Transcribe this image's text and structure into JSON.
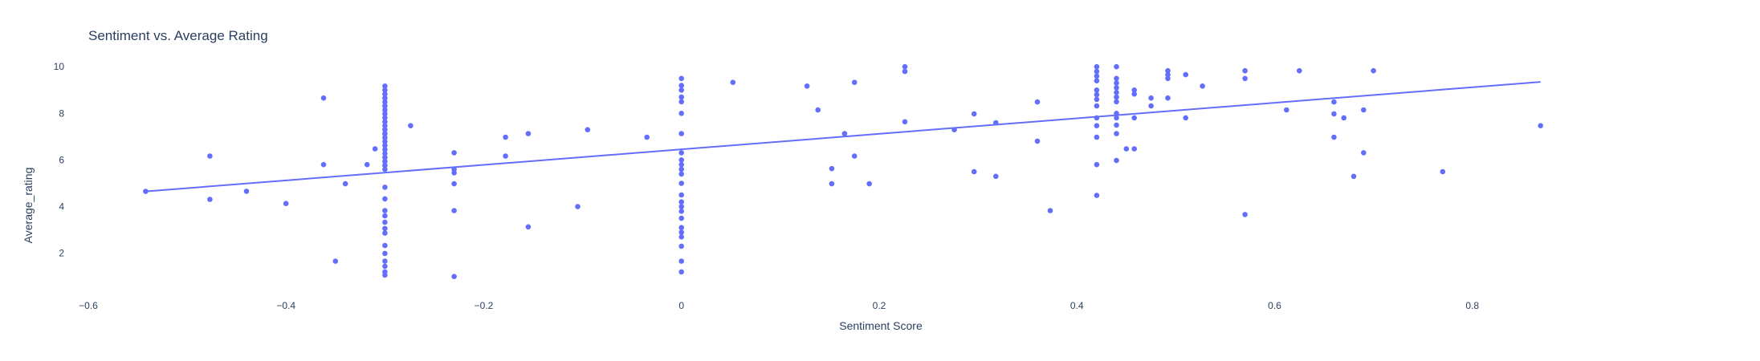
{
  "chart_data": {
    "type": "scatter",
    "title": "Sentiment vs. Average Rating",
    "xlabel": "Sentiment Score",
    "ylabel": "Average_rating",
    "xlim": [
      -0.6,
      1.0
    ],
    "ylim": [
      0.3,
      10.8
    ],
    "xticks": [
      -0.6,
      -0.4,
      -0.2,
      0,
      0.2,
      0.4,
      0.6,
      0.8
    ],
    "xtick_labels": [
      "−0.6",
      "−0.4",
      "−0.2",
      "0",
      "0.2",
      "0.4",
      "0.6",
      "0.8"
    ],
    "yticks": [
      2,
      4,
      6,
      8,
      10
    ],
    "ytick_labels": [
      "2",
      "4",
      "6",
      "8",
      "10"
    ],
    "grid": false,
    "marker_color": "#636efa",
    "trendline": {
      "x": [
        -0.542,
        0.869
      ],
      "y": [
        4.65,
        9.35
      ]
    },
    "points": [
      [
        -0.542,
        4.65
      ],
      [
        -0.477,
        6.17
      ],
      [
        -0.477,
        4.31
      ],
      [
        -0.44,
        4.66
      ],
      [
        -0.4,
        4.13
      ],
      [
        -0.362,
        8.66
      ],
      [
        -0.362,
        5.8
      ],
      [
        -0.35,
        1.66
      ],
      [
        -0.34,
        4.98
      ],
      [
        -0.318,
        5.8
      ],
      [
        -0.31,
        6.48
      ],
      [
        -0.3,
        9.17
      ],
      [
        -0.3,
        9.0
      ],
      [
        -0.3,
        8.83
      ],
      [
        -0.3,
        8.66
      ],
      [
        -0.3,
        8.49
      ],
      [
        -0.3,
        8.32
      ],
      [
        -0.3,
        8.15
      ],
      [
        -0.3,
        7.98
      ],
      [
        -0.3,
        7.81
      ],
      [
        -0.3,
        7.64
      ],
      [
        -0.3,
        7.47
      ],
      [
        -0.3,
        7.3
      ],
      [
        -0.3,
        7.13
      ],
      [
        -0.3,
        6.96
      ],
      [
        -0.3,
        6.79
      ],
      [
        -0.3,
        6.62
      ],
      [
        -0.3,
        6.45
      ],
      [
        -0.3,
        6.28
      ],
      [
        -0.3,
        6.11
      ],
      [
        -0.3,
        5.94
      ],
      [
        -0.3,
        5.77
      ],
      [
        -0.3,
        5.6
      ],
      [
        -0.3,
        4.83
      ],
      [
        -0.3,
        4.33
      ],
      [
        -0.3,
        3.83
      ],
      [
        -0.3,
        3.6
      ],
      [
        -0.3,
        3.33
      ],
      [
        -0.3,
        3.06
      ],
      [
        -0.3,
        2.86
      ],
      [
        -0.3,
        2.33
      ],
      [
        -0.3,
        1.99
      ],
      [
        -0.3,
        1.66
      ],
      [
        -0.3,
        1.44
      ],
      [
        -0.3,
        1.2
      ],
      [
        -0.3,
        1.06
      ],
      [
        -0.274,
        7.47
      ],
      [
        -0.23,
        6.31
      ],
      [
        -0.23,
        5.6
      ],
      [
        -0.23,
        5.45
      ],
      [
        -0.23,
        4.98
      ],
      [
        -0.23,
        3.83
      ],
      [
        -0.23,
        1.0
      ],
      [
        -0.178,
        6.98
      ],
      [
        -0.178,
        6.17
      ],
      [
        -0.155,
        7.13
      ],
      [
        -0.155,
        3.13
      ],
      [
        -0.105,
        4.0
      ],
      [
        -0.095,
        7.3
      ],
      [
        -0.035,
        6.98
      ],
      [
        0,
        9.5
      ],
      [
        0,
        9.2
      ],
      [
        0,
        9.0
      ],
      [
        0,
        8.7
      ],
      [
        0,
        8.5
      ],
      [
        0,
        8.0
      ],
      [
        0,
        7.13
      ],
      [
        0,
        6.31
      ],
      [
        0,
        6.0
      ],
      [
        0,
        5.8
      ],
      [
        0,
        5.6
      ],
      [
        0,
        5.4
      ],
      [
        0,
        5.0
      ],
      [
        0,
        4.5
      ],
      [
        0,
        4.2
      ],
      [
        0,
        4.0
      ],
      [
        0,
        3.8
      ],
      [
        0,
        3.5
      ],
      [
        0,
        3.1
      ],
      [
        0,
        2.9
      ],
      [
        0,
        2.7
      ],
      [
        0,
        2.3
      ],
      [
        0,
        1.66
      ],
      [
        0,
        1.2
      ],
      [
        0.052,
        9.33
      ],
      [
        0.127,
        9.17
      ],
      [
        0.138,
        8.15
      ],
      [
        0.152,
        5.63
      ],
      [
        0.152,
        4.98
      ],
      [
        0.165,
        7.13
      ],
      [
        0.175,
        9.33
      ],
      [
        0.175,
        6.17
      ],
      [
        0.19,
        4.98
      ],
      [
        0.226,
        10.0
      ],
      [
        0.226,
        9.8
      ],
      [
        0.226,
        7.64
      ],
      [
        0.276,
        7.3
      ],
      [
        0.296,
        7.98
      ],
      [
        0.296,
        5.5
      ],
      [
        0.318,
        7.6
      ],
      [
        0.318,
        5.3
      ],
      [
        0.36,
        8.49
      ],
      [
        0.36,
        6.81
      ],
      [
        0.373,
        3.83
      ],
      [
        0.42,
        10.0
      ],
      [
        0.42,
        9.8
      ],
      [
        0.42,
        9.6
      ],
      [
        0.42,
        9.4
      ],
      [
        0.42,
        9.0
      ],
      [
        0.42,
        8.8
      ],
      [
        0.42,
        8.6
      ],
      [
        0.42,
        8.32
      ],
      [
        0.42,
        7.81
      ],
      [
        0.42,
        7.47
      ],
      [
        0.42,
        6.98
      ],
      [
        0.42,
        5.8
      ],
      [
        0.42,
        4.48
      ],
      [
        0.44,
        10.0
      ],
      [
        0.44,
        9.5
      ],
      [
        0.44,
        9.3
      ],
      [
        0.44,
        9.1
      ],
      [
        0.44,
        8.9
      ],
      [
        0.44,
        8.7
      ],
      [
        0.44,
        8.5
      ],
      [
        0.44,
        8.0
      ],
      [
        0.44,
        7.81
      ],
      [
        0.44,
        7.5
      ],
      [
        0.44,
        7.13
      ],
      [
        0.44,
        5.98
      ],
      [
        0.45,
        6.48
      ],
      [
        0.458,
        9.0
      ],
      [
        0.458,
        8.83
      ],
      [
        0.458,
        7.81
      ],
      [
        0.458,
        6.48
      ],
      [
        0.475,
        8.66
      ],
      [
        0.475,
        8.32
      ],
      [
        0.492,
        9.83
      ],
      [
        0.492,
        9.66
      ],
      [
        0.492,
        9.5
      ],
      [
        0.492,
        8.66
      ],
      [
        0.51,
        9.66
      ],
      [
        0.51,
        7.81
      ],
      [
        0.527,
        9.17
      ],
      [
        0.57,
        9.83
      ],
      [
        0.57,
        9.5
      ],
      [
        0.57,
        3.66
      ],
      [
        0.612,
        8.15
      ],
      [
        0.625,
        9.83
      ],
      [
        0.66,
        8.49
      ],
      [
        0.66,
        7.98
      ],
      [
        0.66,
        6.98
      ],
      [
        0.67,
        7.81
      ],
      [
        0.68,
        5.3
      ],
      [
        0.69,
        8.15
      ],
      [
        0.69,
        6.31
      ],
      [
        0.7,
        9.83
      ],
      [
        0.77,
        5.5
      ],
      [
        0.869,
        7.47
      ]
    ]
  }
}
